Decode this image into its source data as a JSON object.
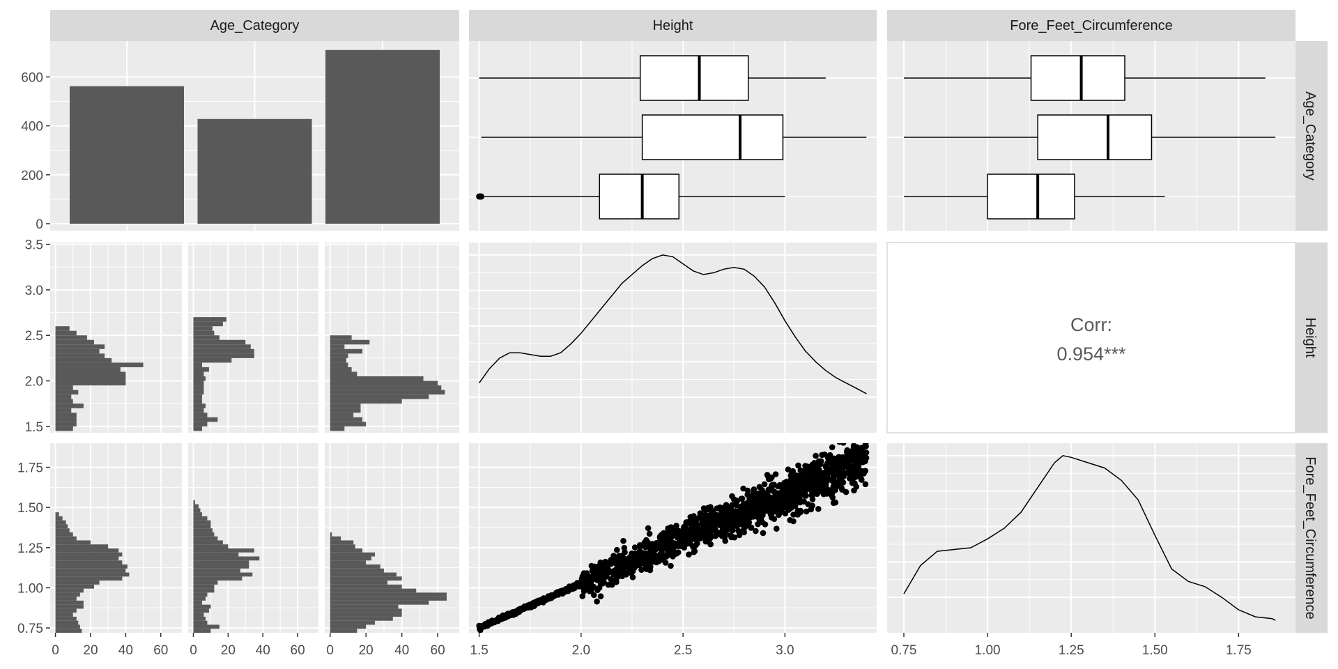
{
  "chart_data": {
    "type": "pairs",
    "variables": [
      "Age_Category",
      "Height",
      "Fore_Feet_Circumference"
    ],
    "colors": {
      "panel_bg": "#ebebeb",
      "strip_bg": "#d9d9d9",
      "bar_fill": "#595959",
      "grid": "#ffffff",
      "ink": "#000000",
      "tick_text": "#4d4d4d",
      "corr_text": "#595959"
    },
    "grid": true,
    "age_counts": {
      "type": "bar",
      "categories": [
        "",
        "",
        ""
      ],
      "values": [
        562,
        428,
        710
      ],
      "ylim": [
        0,
        735
      ],
      "yticks": [
        0,
        200,
        400,
        600
      ],
      "ytick_labels": [
        "0",
        "200",
        "400",
        "600"
      ]
    },
    "height_boxplot": {
      "type": "boxplot",
      "xlim": [
        1.45,
        3.45
      ],
      "boxes": [
        {
          "min": 1.5,
          "q1": 2.29,
          "median": 2.58,
          "q3": 2.82,
          "max": 3.2,
          "outliers": []
        },
        {
          "min": 1.51,
          "q1": 2.3,
          "median": 2.78,
          "q3": 2.99,
          "max": 3.4,
          "outliers": []
        },
        {
          "min": 1.52,
          "q1": 2.09,
          "median": 2.3,
          "q3": 2.48,
          "max": 3.0,
          "outliers": [
            1.5,
            1.505,
            1.51
          ]
        }
      ]
    },
    "ffc_boxplot": {
      "type": "boxplot",
      "xlim": [
        0.7,
        1.92
      ],
      "boxes": [
        {
          "min": 0.75,
          "q1": 1.13,
          "median": 1.28,
          "q3": 1.41,
          "max": 1.83,
          "outliers": []
        },
        {
          "min": 0.75,
          "q1": 1.15,
          "median": 1.36,
          "q3": 1.49,
          "max": 1.86,
          "outliers": []
        },
        {
          "min": 0.75,
          "q1": 1.0,
          "median": 1.15,
          "q3": 1.26,
          "max": 1.53,
          "outliers": []
        }
      ]
    },
    "height_axis": {
      "lim": [
        1.43,
        3.52
      ],
      "ticks": [
        1.5,
        2.0,
        2.5,
        3.0,
        3.5
      ],
      "tick_labels": [
        "1.5",
        "2.0",
        "2.5",
        "3.0",
        "3.5"
      ]
    },
    "ffc_axis": {
      "lim": [
        0.72,
        1.9
      ],
      "ticks": [
        0.75,
        1.0,
        1.25,
        1.5,
        1.75
      ],
      "tick_labels": [
        "0.75",
        "1.00",
        "1.25",
        "1.50",
        "1.75"
      ]
    },
    "height_x_axis": {
      "lim": [
        1.45,
        3.45
      ],
      "ticks": [
        1.5,
        2.0,
        2.5,
        3.0
      ],
      "tick_labels": [
        "1.5",
        "2.0",
        "2.5",
        "3.0"
      ]
    },
    "ffc_x_axis": {
      "lim": [
        0.7,
        1.92
      ],
      "ticks": [
        0.75,
        1.0,
        1.25,
        1.5,
        1.75
      ],
      "tick_labels": [
        "0.75",
        "1.00",
        "1.25",
        "1.50",
        "1.75"
      ]
    },
    "count_x_axis": {
      "lim": [
        -3,
        72
      ],
      "ticks": [
        0,
        20,
        40,
        60
      ],
      "tick_labels": [
        "0",
        "20",
        "40",
        "60"
      ]
    },
    "height_hist": {
      "type": "histogram",
      "bin_start": 1.45,
      "bin_width": 0.05,
      "counts": [
        [
          10,
          12,
          12,
          12,
          9,
          16,
          10,
          9,
          13,
          10,
          40,
          40,
          40,
          37,
          50,
          32,
          28,
          25,
          28,
          22,
          18,
          12,
          8,
          0,
          0,
          0,
          0,
          0,
          0,
          0,
          0,
          0,
          0,
          0,
          0,
          0,
          0,
          0,
          0,
          0
        ],
        [
          5,
          8,
          14,
          8,
          6,
          7,
          5,
          5,
          6,
          6,
          6,
          7,
          6,
          9,
          5,
          22,
          35,
          35,
          33,
          30,
          15,
          12,
          11,
          17,
          19,
          0,
          0,
          0,
          0,
          0,
          0,
          0,
          0,
          0,
          0,
          0,
          0,
          0,
          0,
          0
        ],
        [
          8,
          20,
          18,
          13,
          17,
          17,
          40,
          55,
          64,
          62,
          60,
          52,
          15,
          12,
          10,
          9,
          10,
          18,
          8,
          22,
          12,
          0,
          0,
          0,
          0,
          0,
          0,
          0,
          0,
          0,
          0,
          0,
          0,
          0,
          0,
          0,
          0,
          0,
          0,
          0
        ]
      ]
    },
    "ffc_hist": {
      "type": "histogram",
      "bin_start": 0.72,
      "bin_width": 0.025,
      "counts": [
        [
          15,
          14,
          13,
          12,
          10,
          12,
          16,
          16,
          12,
          14,
          16,
          22,
          25,
          38,
          42,
          40,
          41,
          38,
          36,
          38,
          36,
          30,
          20,
          12,
          10,
          8,
          7,
          6,
          4,
          2,
          0,
          0,
          0,
          0,
          0,
          0,
          0,
          0,
          0,
          0,
          0,
          0,
          0,
          0,
          0,
          0,
          0,
          0
        ],
        [
          10,
          15,
          8,
          7,
          6,
          9,
          10,
          5,
          7,
          8,
          12,
          12,
          14,
          28,
          34,
          27,
          32,
          32,
          38,
          26,
          35,
          20,
          17,
          14,
          12,
          11,
          10,
          10,
          8,
          5,
          4,
          3,
          1,
          0,
          0,
          0,
          0,
          0,
          0,
          0,
          0,
          0,
          0,
          0,
          0,
          0,
          0,
          0
        ],
        [
          15,
          20,
          25,
          35,
          40,
          40,
          38,
          55,
          65,
          65,
          48,
          40,
          32,
          40,
          37,
          30,
          28,
          20,
          23,
          25,
          18,
          14,
          13,
          6,
          1,
          0,
          0,
          0,
          0,
          0,
          0,
          0,
          0,
          0,
          0,
          0,
          0,
          0,
          0,
          0,
          0,
          0,
          0,
          0,
          0,
          0,
          0,
          0
        ]
      ]
    },
    "height_density": {
      "type": "line",
      "x": [
        1.5,
        1.55,
        1.6,
        1.65,
        1.7,
        1.75,
        1.8,
        1.85,
        1.9,
        1.95,
        2.0,
        2.05,
        2.1,
        2.15,
        2.2,
        2.25,
        2.3,
        2.35,
        2.4,
        2.45,
        2.5,
        2.55,
        2.6,
        2.65,
        2.7,
        2.75,
        2.8,
        2.85,
        2.9,
        2.95,
        3.0,
        3.05,
        3.1,
        3.15,
        3.2,
        3.25,
        3.3,
        3.35,
        3.4
      ],
      "y": [
        0.28,
        0.36,
        0.42,
        0.45,
        0.45,
        0.44,
        0.43,
        0.43,
        0.45,
        0.5,
        0.56,
        0.63,
        0.7,
        0.77,
        0.84,
        0.89,
        0.94,
        0.98,
        1.0,
        0.99,
        0.95,
        0.91,
        0.89,
        0.9,
        0.92,
        0.93,
        0.92,
        0.88,
        0.82,
        0.73,
        0.63,
        0.54,
        0.46,
        0.4,
        0.35,
        0.31,
        0.28,
        0.25,
        0.22
      ],
      "ylim": [
        0,
        1.07
      ]
    },
    "ffc_density": {
      "type": "line",
      "x": [
        0.75,
        0.8,
        0.85,
        0.9,
        0.95,
        1.0,
        1.05,
        1.1,
        1.15,
        1.2,
        1.225,
        1.25,
        1.3,
        1.35,
        1.4,
        1.45,
        1.5,
        1.55,
        1.6,
        1.65,
        1.7,
        1.75,
        1.8,
        1.85,
        1.86
      ],
      "y": [
        0.22,
        0.38,
        0.46,
        0.47,
        0.48,
        0.53,
        0.59,
        0.68,
        0.82,
        0.96,
        1.0,
        0.99,
        0.96,
        0.93,
        0.86,
        0.75,
        0.55,
        0.36,
        0.29,
        0.26,
        0.2,
        0.13,
        0.09,
        0.08,
        0.07
      ],
      "ylim": [
        0,
        1.07
      ]
    },
    "scatter": {
      "type": "scatter",
      "x_var": "Height",
      "y_var": "Fore_Feet_Circumference",
      "n_points": 1700,
      "trend": {
        "x0": 1.5,
        "y0": 0.75,
        "x1": 3.4,
        "y1": 1.8
      }
    },
    "corr": {
      "title": "Corr:",
      "value": "0.954***"
    }
  }
}
